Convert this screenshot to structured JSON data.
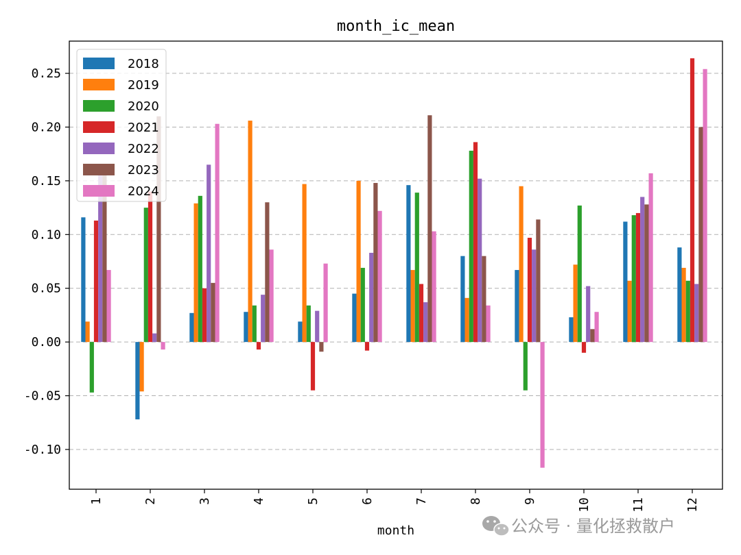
{
  "chart_data": {
    "type": "bar",
    "title": "month_ic_mean",
    "xlabel": "month",
    "ylabel": "",
    "ylim": [
      -0.137,
      0.28
    ],
    "grid": "horizontal-dashed",
    "legend_position": "top-left",
    "categories": [
      "1",
      "2",
      "3",
      "4",
      "5",
      "6",
      "7",
      "8",
      "9",
      "10",
      "11",
      "12"
    ],
    "yticks": [
      -0.1,
      -0.05,
      0.0,
      0.05,
      0.1,
      0.15,
      0.2,
      0.25
    ],
    "ytick_labels": [
      "-0.10",
      "-0.05",
      "0.00",
      "0.05",
      "0.10",
      "0.15",
      "0.20",
      "0.25"
    ],
    "series": [
      {
        "name": "2018",
        "color": "#1f77b4",
        "values": [
          0.116,
          -0.072,
          0.027,
          0.028,
          0.019,
          0.045,
          0.146,
          0.08,
          0.067,
          0.023,
          0.112,
          0.088
        ]
      },
      {
        "name": "2019",
        "color": "#ff7f0e",
        "values": [
          0.019,
          -0.046,
          0.129,
          0.206,
          0.147,
          0.15,
          0.067,
          0.041,
          0.145,
          0.072,
          0.057,
          0.069
        ]
      },
      {
        "name": "2020",
        "color": "#2ca02c",
        "values": [
          -0.047,
          0.125,
          0.136,
          0.034,
          0.034,
          0.069,
          0.139,
          0.178,
          -0.045,
          0.127,
          0.118,
          0.057
        ]
      },
      {
        "name": "2021",
        "color": "#d62728",
        "values": [
          0.113,
          0.14,
          0.05,
          -0.007,
          -0.045,
          -0.008,
          0.054,
          0.186,
          0.097,
          -0.01,
          0.12,
          0.264
        ]
      },
      {
        "name": "2022",
        "color": "#9467bd",
        "values": [
          0.16,
          0.008,
          0.165,
          0.044,
          0.029,
          0.083,
          0.037,
          0.152,
          0.086,
          0.052,
          0.135,
          0.054
        ]
      },
      {
        "name": "2023",
        "color": "#8c564b",
        "values": [
          0.16,
          0.21,
          0.055,
          0.13,
          -0.009,
          0.148,
          0.211,
          0.08,
          0.114,
          0.012,
          0.128,
          0.2
        ]
      },
      {
        "name": "2024",
        "color": "#e377c2",
        "values": [
          0.067,
          -0.007,
          0.203,
          0.086,
          0.073,
          0.122,
          0.103,
          0.034,
          -0.117,
          0.028,
          0.157,
          0.254
        ]
      }
    ]
  },
  "watermark": {
    "icon": "wechat-icon",
    "text": "公众号 · 量化拯救散户"
  }
}
